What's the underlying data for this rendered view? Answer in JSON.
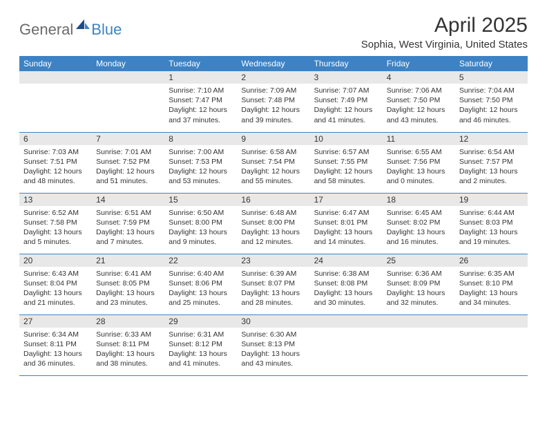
{
  "logo": {
    "general": "General",
    "blue": "Blue"
  },
  "title": "April 2025",
  "location": "Sophia, West Virginia, United States",
  "colors": {
    "header_bg": "#3d82c4",
    "band_bg": "#e8e8e8",
    "text": "#333333"
  },
  "day_headers": [
    "Sunday",
    "Monday",
    "Tuesday",
    "Wednesday",
    "Thursday",
    "Friday",
    "Saturday"
  ],
  "weeks": [
    [
      null,
      null,
      {
        "n": "1",
        "sr": "Sunrise: 7:10 AM",
        "ss": "Sunset: 7:47 PM",
        "dl": "Daylight: 12 hours and 37 minutes."
      },
      {
        "n": "2",
        "sr": "Sunrise: 7:09 AM",
        "ss": "Sunset: 7:48 PM",
        "dl": "Daylight: 12 hours and 39 minutes."
      },
      {
        "n": "3",
        "sr": "Sunrise: 7:07 AM",
        "ss": "Sunset: 7:49 PM",
        "dl": "Daylight: 12 hours and 41 minutes."
      },
      {
        "n": "4",
        "sr": "Sunrise: 7:06 AM",
        "ss": "Sunset: 7:50 PM",
        "dl": "Daylight: 12 hours and 43 minutes."
      },
      {
        "n": "5",
        "sr": "Sunrise: 7:04 AM",
        "ss": "Sunset: 7:50 PM",
        "dl": "Daylight: 12 hours and 46 minutes."
      }
    ],
    [
      {
        "n": "6",
        "sr": "Sunrise: 7:03 AM",
        "ss": "Sunset: 7:51 PM",
        "dl": "Daylight: 12 hours and 48 minutes."
      },
      {
        "n": "7",
        "sr": "Sunrise: 7:01 AM",
        "ss": "Sunset: 7:52 PM",
        "dl": "Daylight: 12 hours and 51 minutes."
      },
      {
        "n": "8",
        "sr": "Sunrise: 7:00 AM",
        "ss": "Sunset: 7:53 PM",
        "dl": "Daylight: 12 hours and 53 minutes."
      },
      {
        "n": "9",
        "sr": "Sunrise: 6:58 AM",
        "ss": "Sunset: 7:54 PM",
        "dl": "Daylight: 12 hours and 55 minutes."
      },
      {
        "n": "10",
        "sr": "Sunrise: 6:57 AM",
        "ss": "Sunset: 7:55 PM",
        "dl": "Daylight: 12 hours and 58 minutes."
      },
      {
        "n": "11",
        "sr": "Sunrise: 6:55 AM",
        "ss": "Sunset: 7:56 PM",
        "dl": "Daylight: 13 hours and 0 minutes."
      },
      {
        "n": "12",
        "sr": "Sunrise: 6:54 AM",
        "ss": "Sunset: 7:57 PM",
        "dl": "Daylight: 13 hours and 2 minutes."
      }
    ],
    [
      {
        "n": "13",
        "sr": "Sunrise: 6:52 AM",
        "ss": "Sunset: 7:58 PM",
        "dl": "Daylight: 13 hours and 5 minutes."
      },
      {
        "n": "14",
        "sr": "Sunrise: 6:51 AM",
        "ss": "Sunset: 7:59 PM",
        "dl": "Daylight: 13 hours and 7 minutes."
      },
      {
        "n": "15",
        "sr": "Sunrise: 6:50 AM",
        "ss": "Sunset: 8:00 PM",
        "dl": "Daylight: 13 hours and 9 minutes."
      },
      {
        "n": "16",
        "sr": "Sunrise: 6:48 AM",
        "ss": "Sunset: 8:00 PM",
        "dl": "Daylight: 13 hours and 12 minutes."
      },
      {
        "n": "17",
        "sr": "Sunrise: 6:47 AM",
        "ss": "Sunset: 8:01 PM",
        "dl": "Daylight: 13 hours and 14 minutes."
      },
      {
        "n": "18",
        "sr": "Sunrise: 6:45 AM",
        "ss": "Sunset: 8:02 PM",
        "dl": "Daylight: 13 hours and 16 minutes."
      },
      {
        "n": "19",
        "sr": "Sunrise: 6:44 AM",
        "ss": "Sunset: 8:03 PM",
        "dl": "Daylight: 13 hours and 19 minutes."
      }
    ],
    [
      {
        "n": "20",
        "sr": "Sunrise: 6:43 AM",
        "ss": "Sunset: 8:04 PM",
        "dl": "Daylight: 13 hours and 21 minutes."
      },
      {
        "n": "21",
        "sr": "Sunrise: 6:41 AM",
        "ss": "Sunset: 8:05 PM",
        "dl": "Daylight: 13 hours and 23 minutes."
      },
      {
        "n": "22",
        "sr": "Sunrise: 6:40 AM",
        "ss": "Sunset: 8:06 PM",
        "dl": "Daylight: 13 hours and 25 minutes."
      },
      {
        "n": "23",
        "sr": "Sunrise: 6:39 AM",
        "ss": "Sunset: 8:07 PM",
        "dl": "Daylight: 13 hours and 28 minutes."
      },
      {
        "n": "24",
        "sr": "Sunrise: 6:38 AM",
        "ss": "Sunset: 8:08 PM",
        "dl": "Daylight: 13 hours and 30 minutes."
      },
      {
        "n": "25",
        "sr": "Sunrise: 6:36 AM",
        "ss": "Sunset: 8:09 PM",
        "dl": "Daylight: 13 hours and 32 minutes."
      },
      {
        "n": "26",
        "sr": "Sunrise: 6:35 AM",
        "ss": "Sunset: 8:10 PM",
        "dl": "Daylight: 13 hours and 34 minutes."
      }
    ],
    [
      {
        "n": "27",
        "sr": "Sunrise: 6:34 AM",
        "ss": "Sunset: 8:11 PM",
        "dl": "Daylight: 13 hours and 36 minutes."
      },
      {
        "n": "28",
        "sr": "Sunrise: 6:33 AM",
        "ss": "Sunset: 8:11 PM",
        "dl": "Daylight: 13 hours and 38 minutes."
      },
      {
        "n": "29",
        "sr": "Sunrise: 6:31 AM",
        "ss": "Sunset: 8:12 PM",
        "dl": "Daylight: 13 hours and 41 minutes."
      },
      {
        "n": "30",
        "sr": "Sunrise: 6:30 AM",
        "ss": "Sunset: 8:13 PM",
        "dl": "Daylight: 13 hours and 43 minutes."
      },
      null,
      null,
      null
    ]
  ]
}
